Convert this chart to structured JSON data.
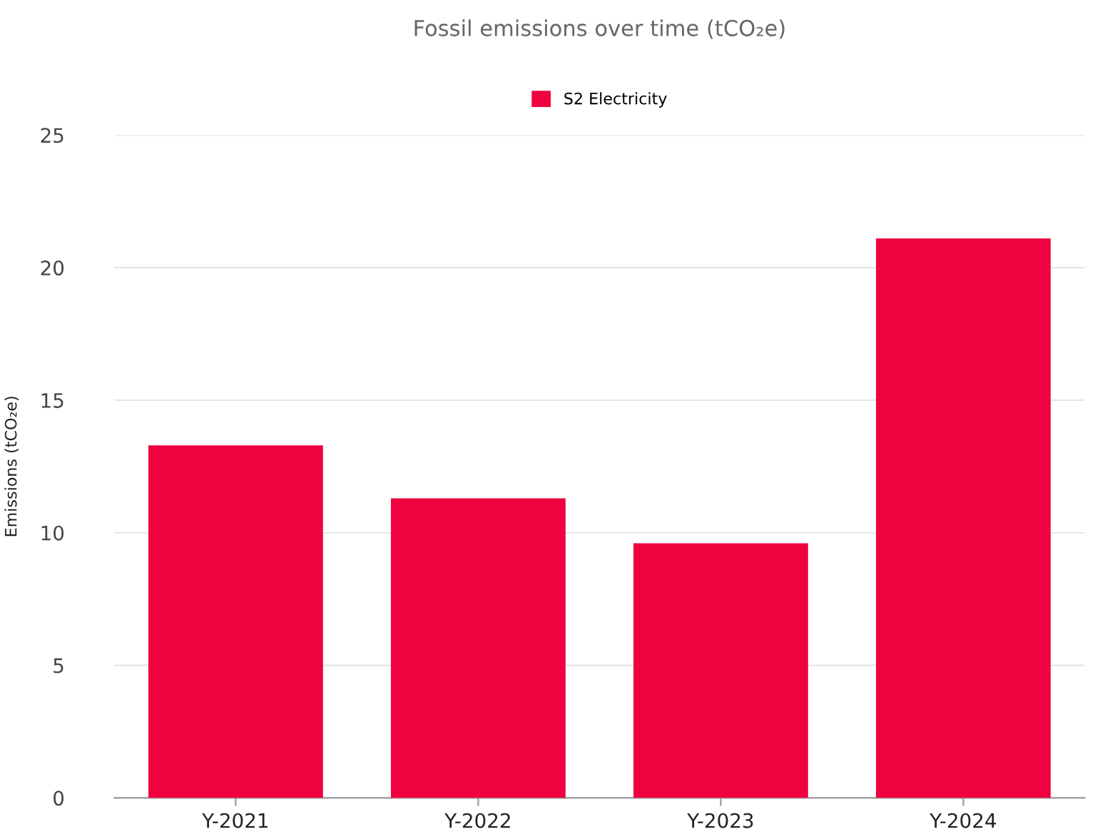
{
  "chart_data": {
    "type": "bar",
    "title": "Fossil emissions over time (tCO₂e)",
    "ylabel": "Emissions (tCO₂e)",
    "categories": [
      "Y-2021",
      "Y-2022",
      "Y-2023",
      "Y-2024"
    ],
    "series": [
      {
        "name": "S2 Electricity",
        "color": "#ee0340",
        "values": [
          13.3,
          11.3,
          9.6,
          21.1
        ]
      }
    ],
    "ylim": [
      0,
      25
    ],
    "yticks": [
      0,
      5,
      10,
      15,
      20,
      25
    ],
    "grid": "y",
    "legend": "top"
  }
}
